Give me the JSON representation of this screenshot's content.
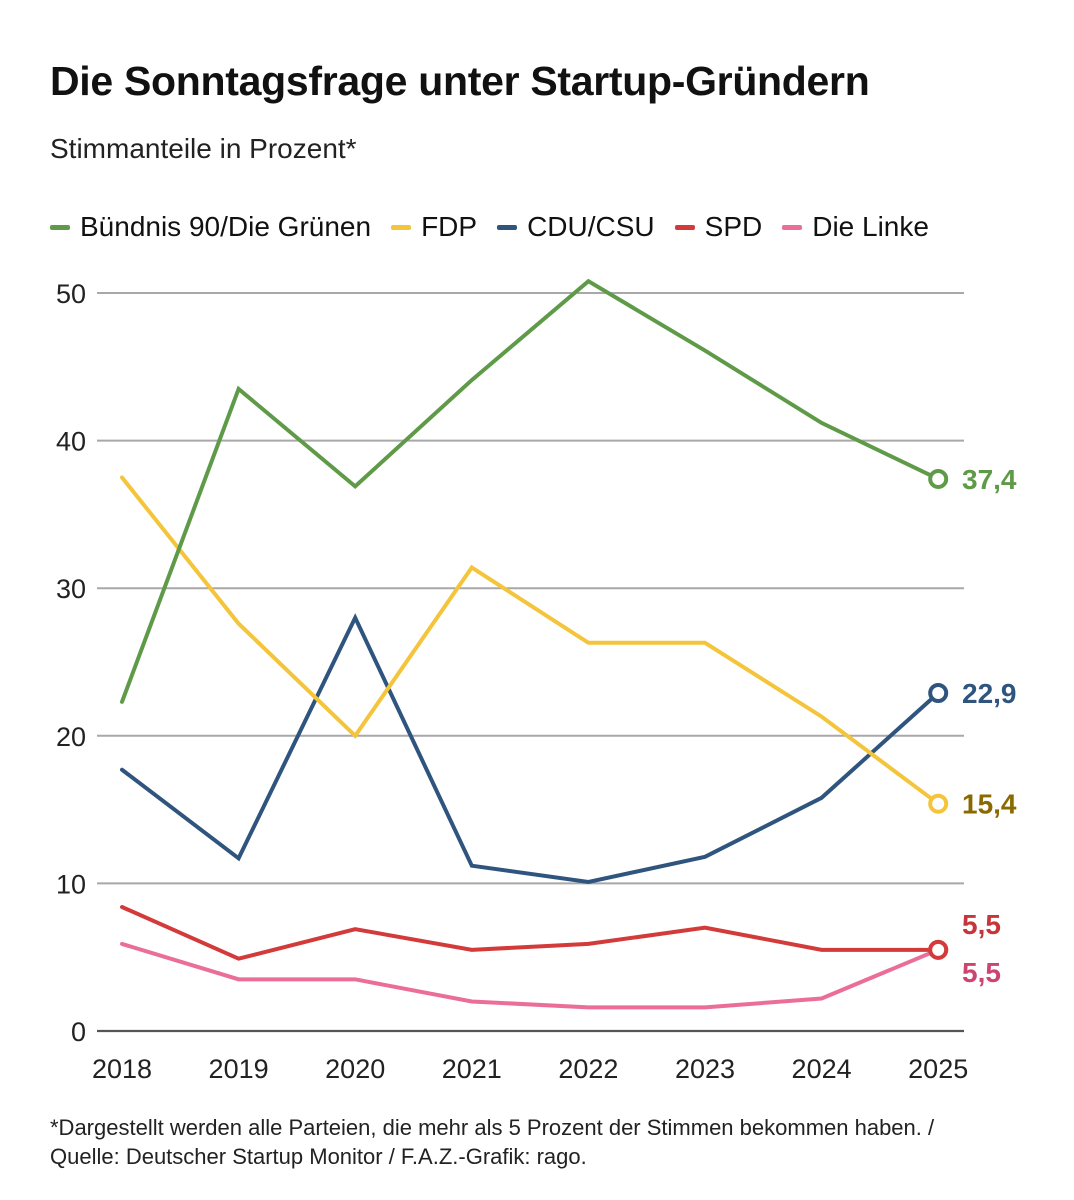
{
  "chart_data": {
    "type": "line",
    "title": "Die Sonntagsfrage unter Startup-Gründern",
    "subtitle": "Stimmanteile in Prozent*",
    "xlabel": "",
    "ylabel": "",
    "ylim": [
      0,
      50
    ],
    "yticks": [
      "0",
      "10",
      "20",
      "30",
      "40",
      "50"
    ],
    "categories": [
      "2018",
      "2019",
      "2020",
      "2021",
      "2022",
      "2023",
      "2024",
      "2025"
    ],
    "grid": true,
    "legend_position": "top",
    "series": [
      {
        "name": "Bündnis 90/Die Grünen",
        "color": "#5f9a48",
        "label_color": "#5f9a48",
        "values": [
          22.3,
          43.5,
          36.9,
          44.1,
          50.8,
          46.1,
          41.2,
          37.4
        ],
        "end_label": "37,4"
      },
      {
        "name": "FDP",
        "color": "#f4c43b",
        "label_color": "#8a6a00",
        "values": [
          37.5,
          27.6,
          20.0,
          31.4,
          26.3,
          26.3,
          21.3,
          15.4
        ],
        "end_label": "15,4"
      },
      {
        "name": "CDU/CSU",
        "color": "#2f557f",
        "label_color": "#2f557f",
        "values": [
          17.7,
          11.7,
          28.0,
          11.2,
          10.1,
          11.8,
          15.8,
          22.9
        ],
        "end_label": "22,9"
      },
      {
        "name": "SPD",
        "color": "#d33a3a",
        "label_color": "#c7343a",
        "values": [
          8.4,
          4.9,
          6.9,
          5.5,
          5.9,
          7.0,
          5.5,
          5.5
        ],
        "end_label": "5,5"
      },
      {
        "name": "Die Linke",
        "color": "#ea6e98",
        "label_color": "#cc4470",
        "values": [
          5.9,
          3.5,
          3.5,
          2.0,
          1.6,
          1.6,
          2.2,
          5.5
        ],
        "end_label": "5,5"
      }
    ],
    "footnote": "*Dargestellt werden alle Parteien, die mehr als 5 Prozent der Stimmen bekommen haben. / Quelle: Deutscher Startup Monitor / F.A.Z.-Grafik: rago."
  }
}
